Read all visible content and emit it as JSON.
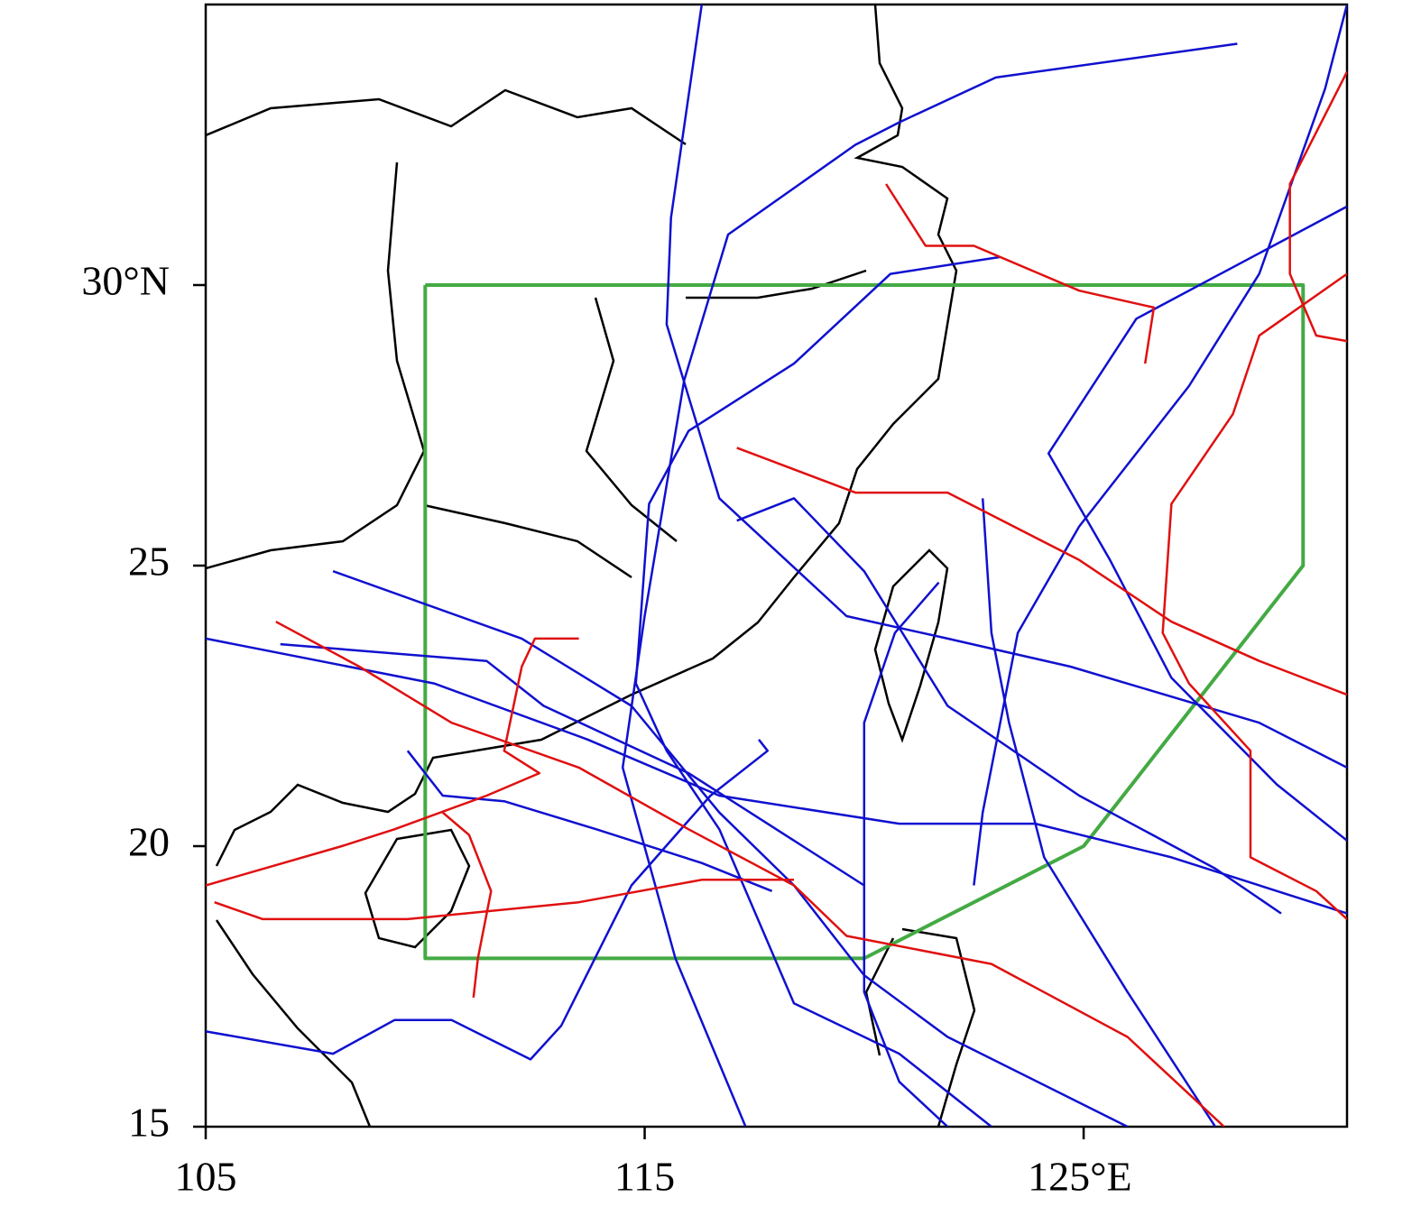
{
  "chart_data": {
    "type": "map",
    "xlim": [
      105,
      131
    ],
    "ylim": [
      15,
      35
    ],
    "xticks": [
      105,
      115,
      {
        "value": 125,
        "label": "125°E"
      }
    ],
    "yticks": [
      15,
      20,
      25,
      {
        "value": 30,
        "label": "30°N"
      }
    ],
    "series": [
      {
        "color": "#44aa44",
        "x": [
          110,
          130,
          130,
          125,
          120,
          110,
          110
        ],
        "y": [
          30,
          30,
          25,
          20,
          18,
          18,
          30
        ]
      },
      {
        "color": "#1010d0",
        "x": [
          128.5,
          123,
          120.8,
          119.8,
          116.9,
          115.9,
          115,
          114.5,
          115.7,
          117.3
        ],
        "y": [
          34.3,
          33.7,
          32.9,
          32.5,
          30.9,
          28.3,
          24.1,
          21.4,
          18,
          15
        ]
      },
      {
        "color": "#1010d0",
        "x": [
          116.3,
          115.6,
          115.5,
          116.7,
          119.6,
          121.9,
          124.7,
          129,
          131
        ],
        "y": [
          35,
          31.2,
          29.3,
          26.2,
          24.1,
          23.7,
          23.2,
          22.2,
          21.4
        ]
      },
      {
        "color": "#1010d0",
        "x": [
          131,
          130.5,
          129,
          127.4,
          124.9,
          123.5,
          122.7,
          122.5
        ],
        "y": [
          35,
          33.5,
          30.2,
          28.2,
          25.7,
          23.8,
          20.6,
          19.3
        ]
      },
      {
        "color": "#1010d0",
        "x": [
          131,
          126.2,
          124.2,
          125.6,
          127,
          129.4,
          131
        ],
        "y": [
          31.4,
          29.4,
          27,
          25.1,
          23,
          21.1,
          20.1
        ]
      },
      {
        "color": "#1010d0",
        "x": [
          123.1,
          120.6,
          118.4,
          116,
          115.1,
          114.8,
          115.5,
          116.7,
          118.4,
          120.8,
          122.9
        ],
        "y": [
          30.5,
          30.2,
          28.6,
          27.4,
          26.1,
          22.9,
          21.7,
          20.3,
          17.2,
          16.3,
          15
        ]
      },
      {
        "color": "#1010d0",
        "x": [
          107.9,
          112.2,
          114.7,
          116.7,
          118.4,
          120,
          121.9,
          126
        ],
        "y": [
          24.9,
          23.7,
          22.5,
          20.6,
          19.3,
          17.7,
          16.6,
          15
        ]
      },
      {
        "color": "#1010d0",
        "x": [
          105,
          110.2,
          113.7,
          116.7,
          120.8,
          123.9,
          127,
          131
        ],
        "y": [
          23.7,
          22.9,
          21.9,
          20.9,
          20.4,
          20.4,
          19.8,
          18.8
        ]
      },
      {
        "color": "#1010d0",
        "x": [
          106.7,
          111.4,
          112.7,
          116,
          118.4,
          120
        ],
        "y": [
          23.6,
          23.3,
          22.5,
          21.3,
          20.1,
          19.3
        ]
      },
      {
        "color": "#1010d0",
        "x": [
          109.6,
          110.4,
          111.8,
          113.9,
          116.3,
          117.9
        ],
        "y": [
          21.7,
          20.9,
          20.8,
          20.3,
          19.7,
          19.2
        ]
      },
      {
        "color": "#1010d0",
        "x": [
          105,
          107.9,
          109.3,
          110.6,
          112.4,
          113.1,
          114.7,
          116.5,
          117.8,
          117.6
        ],
        "y": [
          16.7,
          16.3,
          16.9,
          16.9,
          16.2,
          16.8,
          19.3,
          20.9,
          21.7,
          21.9
        ]
      },
      {
        "color": "#1010d0",
        "x": [
          121.7,
          120.7,
          120,
          120,
          120,
          120.8,
          121.9
        ],
        "y": [
          24.7,
          23.8,
          22.2,
          19.8,
          17.4,
          15.8,
          15
        ]
      },
      {
        "color": "#1010d0",
        "x": [
          122.7,
          122.9,
          123.3,
          124.1,
          126,
          128
        ],
        "y": [
          26.2,
          23.8,
          22.2,
          19.8,
          17.4,
          15
        ]
      },
      {
        "color": "#1010d0",
        "x": [
          117.1,
          118.4,
          120,
          121.9,
          124.9,
          128,
          129.5
        ],
        "y": [
          25.8,
          26.2,
          24.9,
          22.5,
          20.9,
          19.6,
          18.8
        ]
      },
      {
        "color": "#e01010",
        "x": [
          120.5,
          121.4,
          122.5,
          124.9,
          126.6,
          126.4
        ],
        "y": [
          31.8,
          30.7,
          30.7,
          29.9,
          29.6,
          28.6
        ]
      },
      {
        "color": "#e01010",
        "x": [
          131,
          129.7,
          129.7,
          130.3,
          131
        ],
        "y": [
          33.8,
          31.8,
          30.2,
          29.1,
          29
        ]
      },
      {
        "color": "#e01010",
        "x": [
          131,
          129,
          128.4,
          127,
          126.8,
          127.4,
          128.8,
          128.8,
          130.3,
          131
        ],
        "y": [
          30.2,
          29.1,
          27.7,
          26.1,
          23.8,
          22.9,
          21.7,
          19.8,
          19.2,
          18.7
        ]
      },
      {
        "color": "#e01010",
        "x": [
          117.1,
          119.8,
          121.9,
          124.9,
          127,
          129,
          131
        ],
        "y": [
          27.1,
          26.3,
          26.3,
          25.1,
          24,
          23.3,
          22.7
        ]
      },
      {
        "color": "#e01010",
        "x": [
          106.6,
          108.5,
          110.6,
          113.5,
          116,
          118.4,
          119.6,
          122.9,
          126,
          128.2
        ],
        "y": [
          24,
          23.2,
          22.2,
          21.4,
          20.3,
          19.3,
          18.4,
          17.9,
          16.6,
          15
        ]
      },
      {
        "color": "#e01010",
        "x": [
          105,
          108.1,
          109.3,
          111.4,
          112.6,
          111.8,
          112.2,
          112.5,
          113.5
        ],
        "y": [
          19.3,
          20,
          20.3,
          20.9,
          21.3,
          21.7,
          23.2,
          23.7,
          23.7
        ]
      },
      {
        "color": "#e01010",
        "x": [
          105.2,
          106.3,
          109.6,
          113.5,
          116.3,
          118.4
        ],
        "y": [
          19,
          18.7,
          18.7,
          19,
          19.4,
          19.4
        ]
      },
      {
        "color": "#e01010",
        "x": [
          111.1,
          111.2,
          111.5,
          111,
          110.4
        ],
        "y": [
          17.3,
          18,
          19.2,
          20.2,
          20.6
        ]
      }
    ]
  }
}
